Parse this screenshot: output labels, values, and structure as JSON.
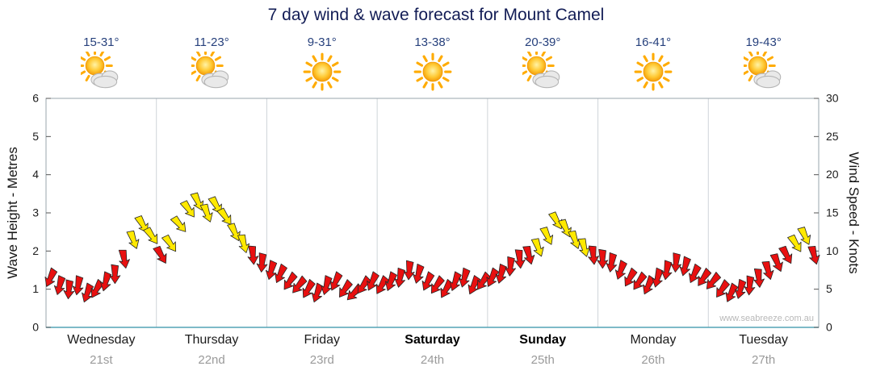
{
  "title": "7 day wind & wave forecast for Mount Camel",
  "watermark": "www.seabreeze.com.au",
  "axes": {
    "left_label": "Wave Height - Metres",
    "right_label": "Wind Speed - Knots",
    "left_ticks": [
      0,
      1,
      2,
      3,
      4,
      5,
      6
    ],
    "right_ticks": [
      0,
      5,
      10,
      15,
      20,
      25,
      30
    ]
  },
  "days": [
    {
      "name": "Wednesday",
      "date": "21st",
      "temp": "15-31°",
      "icon": "sun-cloud",
      "weekend": false
    },
    {
      "name": "Thursday",
      "date": "22nd",
      "temp": "11-23°",
      "icon": "sun-cloud",
      "weekend": false
    },
    {
      "name": "Friday",
      "date": "23rd",
      "temp": "9-31°",
      "icon": "sun",
      "weekend": false
    },
    {
      "name": "Saturday",
      "date": "24th",
      "temp": "13-38°",
      "icon": "sun",
      "weekend": true
    },
    {
      "name": "Sunday",
      "date": "25th",
      "temp": "20-39°",
      "icon": "sun-cloud",
      "weekend": true
    },
    {
      "name": "Monday",
      "date": "26th",
      "temp": "16-41°",
      "icon": "sun",
      "weekend": false
    },
    {
      "name": "Tuesday",
      "date": "27th",
      "temp": "19-43°",
      "icon": "sun-cloud",
      "weekend": false
    }
  ],
  "chart_data": {
    "type": "line",
    "subtype": "wind-direction-arrow-series",
    "title": "7 day wind & wave forecast for Mount Camel",
    "day_categories": [
      "Wednesday 21st",
      "Thursday 22nd",
      "Friday 23rd",
      "Saturday 24th",
      "Sunday 25th",
      "Monday 26th",
      "Tuesday 27th"
    ],
    "points_per_day": 12,
    "left_axis_range_metres": [
      0,
      6
    ],
    "right_axis_range_knots": [
      0,
      30
    ],
    "metres_per_knot": 0.2,
    "grid": "vertical-day-separators-only",
    "color_threshold_knots": 10,
    "arrow_colors": {
      "red": "#e81010",
      "yellow": "#ffe900"
    },
    "wind_knots": [
      6.5,
      5.5,
      5,
      5.5,
      4.5,
      5,
      6,
      7,
      9,
      11.5,
      13.5,
      12,
      9.5,
      11,
      13.5,
      15.5,
      16.5,
      15,
      16,
      14.5,
      12.5,
      11,
      9.5,
      8.5,
      7.5,
      7,
      6,
      5.5,
      5,
      4.5,
      5.5,
      6,
      5,
      4.5,
      5.5,
      6,
      5.5,
      6,
      6.5,
      7.5,
      7,
      6,
      5.5,
      5,
      6,
      6.5,
      5.5,
      6,
      6.5,
      7,
      8,
      9,
      9.5,
      10.5,
      12,
      14,
      13,
      11.5,
      10.5,
      9.5,
      9,
      8.5,
      7.5,
      6.5,
      6,
      5.5,
      6.5,
      7.5,
      8.5,
      8,
      7,
      6.5,
      6,
      5,
      4.5,
      5,
      5.5,
      6.5,
      7.5,
      8.5,
      9.5,
      11,
      12,
      9.5
    ],
    "wind_dir_deg": [
      205,
      195,
      185,
      190,
      200,
      210,
      195,
      180,
      170,
      160,
      150,
      145,
      150,
      145,
      140,
      145,
      155,
      160,
      150,
      145,
      155,
      165,
      175,
      185,
      195,
      205,
      215,
      220,
      210,
      200,
      195,
      205,
      215,
      225,
      215,
      205,
      210,
      200,
      190,
      185,
      195,
      205,
      215,
      210,
      200,
      195,
      205,
      215,
      205,
      195,
      185,
      175,
      165,
      160,
      155,
      150,
      155,
      160,
      165,
      175,
      180,
      190,
      200,
      210,
      215,
      205,
      195,
      190,
      185,
      195,
      205,
      215,
      220,
      215,
      205,
      195,
      185,
      175,
      165,
      158,
      152,
      148,
      155,
      165
    ]
  }
}
